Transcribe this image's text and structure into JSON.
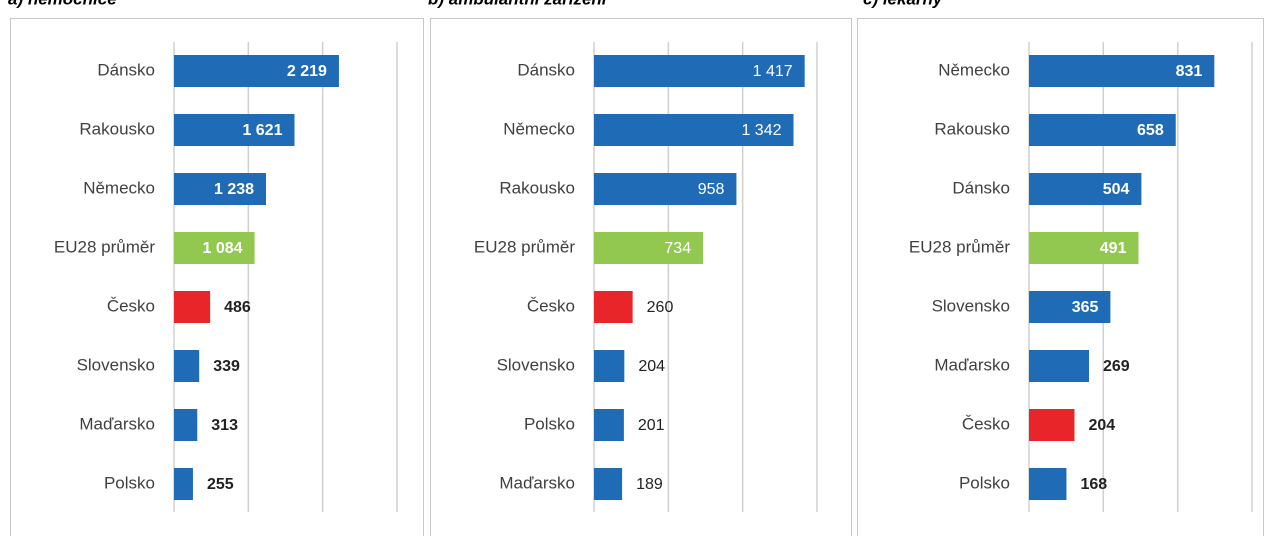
{
  "chart_data": [
    {
      "type": "bar",
      "title": "a) nemocnice",
      "categories": [
        "Dánsko",
        "Rakousko",
        "Německo",
        "EU28 průměr",
        "Česko",
        "Slovensko",
        "Maďarsko",
        "Polsko"
      ],
      "values": [
        2219,
        1621,
        1238,
        1084,
        486,
        339,
        313,
        255
      ],
      "value_labels": [
        "2 219",
        "1 621",
        "1 238",
        "1 084",
        "486",
        "339",
        "313",
        "255"
      ],
      "colors": [
        "#1f6bb5",
        "#1f6bb5",
        "#1f6bb5",
        "#92c850",
        "#e8262a",
        "#1f6bb5",
        "#1f6bb5",
        "#1f6bb5"
      ],
      "xlim": [
        0,
        3000
      ],
      "xticks": [
        0,
        1000,
        2000,
        3000
      ],
      "grid": true,
      "bold_labels": true
    },
    {
      "type": "bar",
      "title": "b) ambulantní zařízení",
      "categories": [
        "Dánsko",
        "Německo",
        "Rakousko",
        "EU28 průměr",
        "Česko",
        "Slovensko",
        "Polsko",
        "Maďarsko"
      ],
      "values": [
        1417,
        1342,
        958,
        734,
        260,
        204,
        201,
        189
      ],
      "value_labels": [
        "1 417",
        "1 342",
        "958",
        "734",
        "260",
        "204",
        "201",
        "189"
      ],
      "colors": [
        "#1f6bb5",
        "#1f6bb5",
        "#1f6bb5",
        "#92c850",
        "#e8262a",
        "#1f6bb5",
        "#1f6bb5",
        "#1f6bb5"
      ],
      "xlim": [
        0,
        1500
      ],
      "xticks": [
        0,
        500,
        1000,
        1500
      ],
      "grid": true,
      "bold_labels": false
    },
    {
      "type": "bar",
      "title": "c) lékárny",
      "categories": [
        "Německo",
        "Rakousko",
        "Dánsko",
        "EU28 průměr",
        "Slovensko",
        "Maďarsko",
        "Česko",
        "Polsko"
      ],
      "values": [
        831,
        658,
        504,
        491,
        365,
        269,
        204,
        168
      ],
      "colors": [
        "#1f6bb5",
        "#1f6bb5",
        "#1f6bb5",
        "#92c850",
        "#1f6bb5",
        "#1f6bb5",
        "#e8262a",
        "#1f6bb5"
      ],
      "xlim": [
        0,
        1000
      ],
      "xticks": [
        0,
        333,
        667,
        1000
      ],
      "grid": true,
      "bold_labels": true
    }
  ]
}
